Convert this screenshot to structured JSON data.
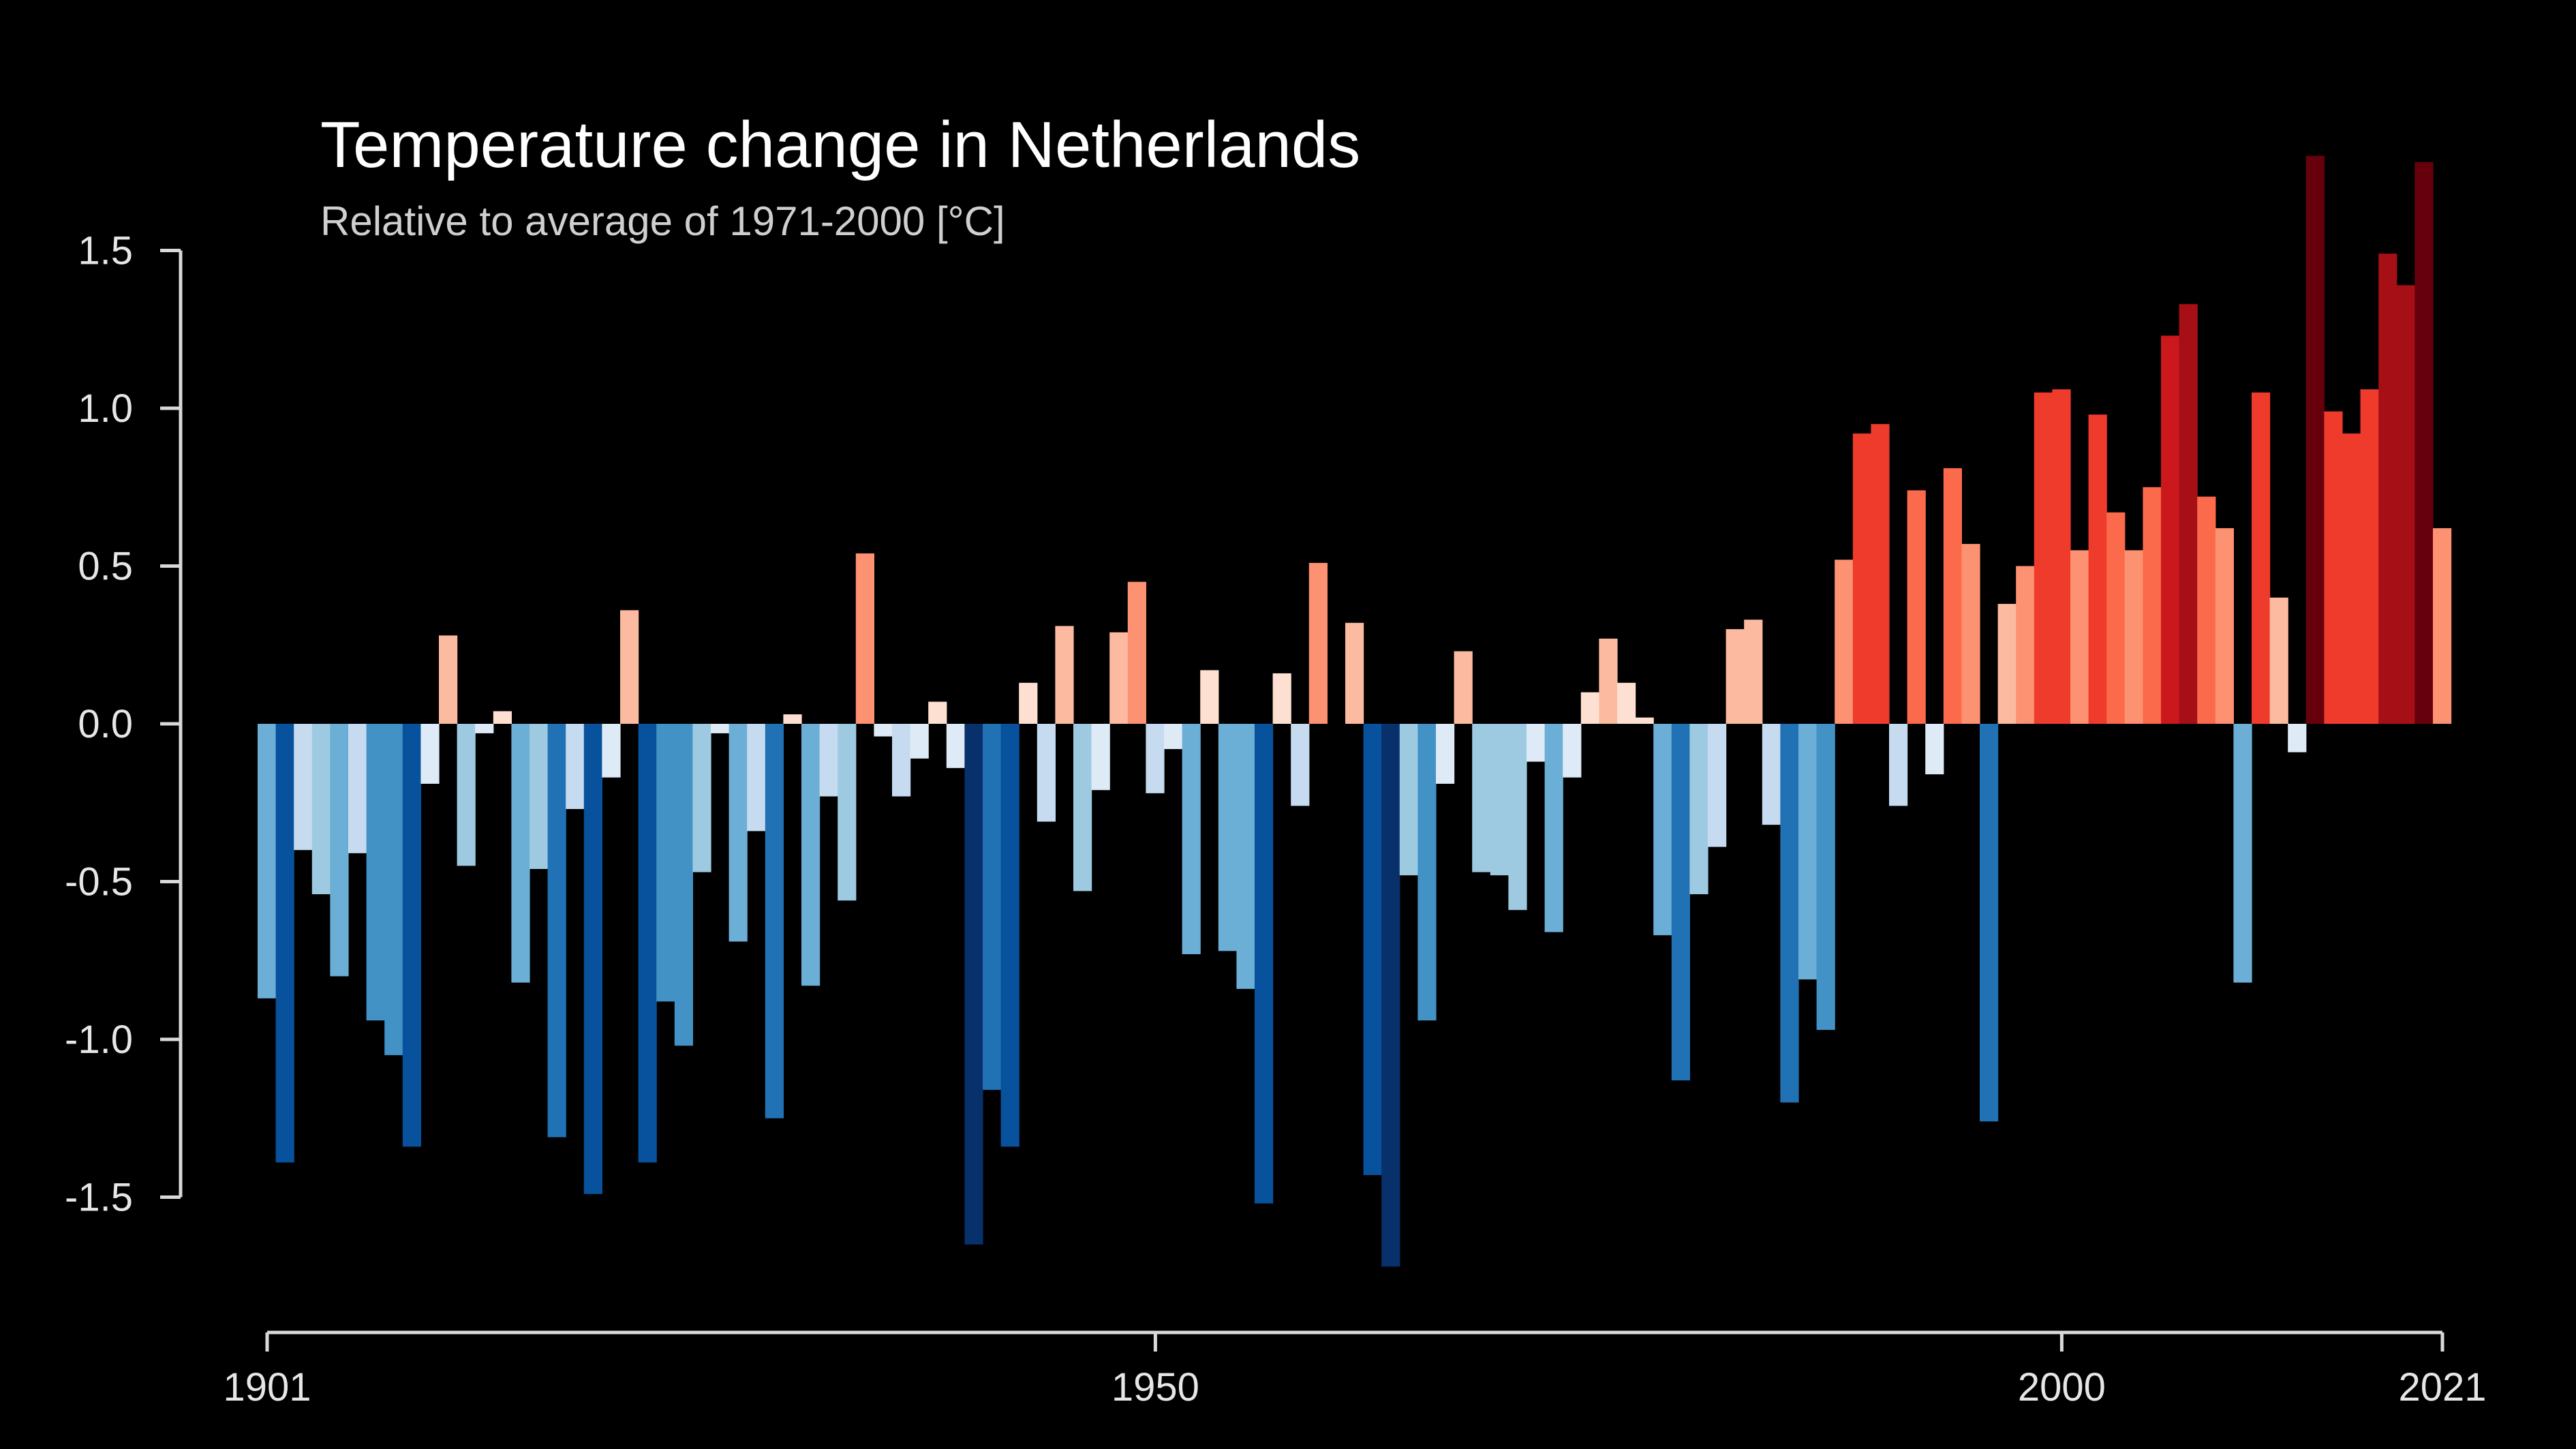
{
  "chart_data": {
    "type": "bar",
    "title": "Temperature change in Netherlands",
    "subtitle": "Relative to average of 1971-2000  [°C]",
    "xlabel": "",
    "ylabel": "",
    "grid": false,
    "legend": "none",
    "xlim": [
      1901,
      2021
    ],
    "ylim": [
      -1.8,
      1.8
    ],
    "y_ticks": [
      1.5,
      1.0,
      0.5,
      0.0,
      -0.5,
      -1.0,
      -1.5
    ],
    "y_tick_labels": [
      "1.5",
      "1.0",
      "0.5",
      "0.0",
      "-0.5",
      "-1.0",
      "-1.5"
    ],
    "x_ticks": [
      1901,
      1950,
      2000,
      2021
    ],
    "x_tick_labels": [
      "1901",
      "1950",
      "2000",
      "2021"
    ],
    "colors": {
      "background": "#000000",
      "axis": "#d9d9d9",
      "text": "#ffffff",
      "negative_scale": [
        "#deebf7",
        "#c6dbef",
        "#9ecae1",
        "#6baed6",
        "#4292c6",
        "#2171b5",
        "#08519c",
        "#08306b"
      ],
      "positive_scale": [
        "#fee0d2",
        "#fcbba1",
        "#fc9272",
        "#fb6a4a",
        "#ef3b2c",
        "#cb181d",
        "#a50f15",
        "#67000d"
      ]
    },
    "years": [
      1901,
      1902,
      1903,
      1904,
      1905,
      1906,
      1907,
      1908,
      1909,
      1910,
      1911,
      1912,
      1913,
      1914,
      1915,
      1916,
      1917,
      1918,
      1919,
      1920,
      1921,
      1922,
      1923,
      1924,
      1925,
      1926,
      1927,
      1928,
      1929,
      1930,
      1931,
      1932,
      1933,
      1934,
      1935,
      1936,
      1937,
      1938,
      1939,
      1940,
      1941,
      1942,
      1943,
      1944,
      1945,
      1946,
      1947,
      1948,
      1949,
      1950,
      1951,
      1952,
      1953,
      1954,
      1955,
      1956,
      1957,
      1958,
      1959,
      1960,
      1961,
      1962,
      1963,
      1964,
      1965,
      1966,
      1967,
      1968,
      1969,
      1970,
      1971,
      1972,
      1973,
      1974,
      1975,
      1976,
      1977,
      1978,
      1979,
      1980,
      1981,
      1982,
      1983,
      1984,
      1985,
      1986,
      1987,
      1988,
      1989,
      1990,
      1991,
      1992,
      1993,
      1994,
      1995,
      1996,
      1997,
      1998,
      1999,
      2000,
      2001,
      2002,
      2003,
      2004,
      2005,
      2006,
      2007,
      2008,
      2009,
      2010,
      2011,
      2012,
      2013,
      2014,
      2015,
      2016,
      2017,
      2018,
      2019,
      2020,
      2021
    ],
    "values": [
      -0.87,
      -1.39,
      -0.4,
      -0.54,
      -0.8,
      -0.41,
      -0.94,
      -1.05,
      -1.34,
      -0.19,
      0.28,
      -0.45,
      -0.03,
      0.04,
      -0.82,
      -0.46,
      -1.31,
      -0.27,
      -1.49,
      -0.17,
      0.36,
      -1.39,
      -0.88,
      -1.02,
      -0.47,
      -0.03,
      -0.69,
      -0.34,
      -1.25,
      0.03,
      -0.83,
      -0.23,
      -0.56,
      0.54,
      -0.04,
      -0.23,
      -0.11,
      0.07,
      -0.14,
      -1.65,
      -1.16,
      -1.34,
      0.13,
      -0.31,
      0.31,
      -0.53,
      -0.21,
      0.29,
      0.45,
      -0.22,
      -0.08,
      -0.73,
      0.17,
      -0.72,
      -0.84,
      -1.52,
      0.16,
      -0.26,
      0.51,
      0.0,
      0.32,
      -1.43,
      -1.72,
      -0.48,
      -0.94,
      -0.19,
      0.23,
      -0.47,
      -0.48,
      -0.59,
      -0.12,
      -0.66,
      -0.17,
      0.1,
      0.27,
      0.13,
      0.02,
      -0.67,
      -1.13,
      -0.54,
      -0.39,
      0.3,
      0.33,
      -0.32,
      -1.2,
      -0.81,
      -0.97,
      0.52,
      0.92,
      0.95,
      -0.26,
      0.74,
      -0.16,
      0.81,
      0.57,
      -1.26,
      0.38,
      0.5,
      1.05,
      1.06,
      0.55,
      0.98,
      0.67,
      0.55,
      0.75,
      1.23,
      1.33,
      0.72,
      0.62,
      -0.82,
      1.05,
      0.4,
      -0.09,
      1.8,
      0.99,
      0.92,
      1.06,
      1.49,
      1.39,
      1.78,
      0.62
    ]
  }
}
